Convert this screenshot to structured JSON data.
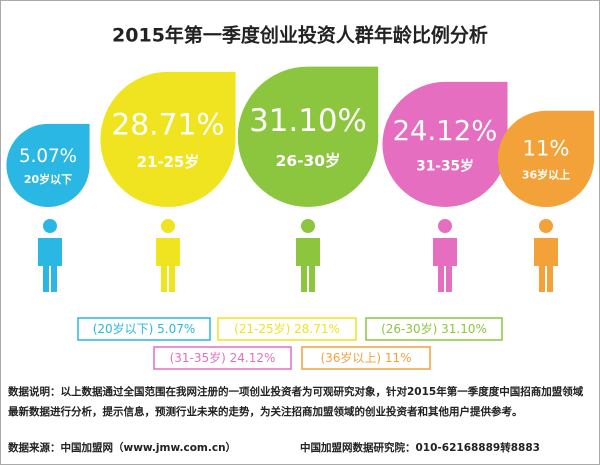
{
  "chart_data": {
    "type": "droplet",
    "title": "2015年第一季度创业投资人群年龄比例分析",
    "categories": [
      "20岁以下",
      "21-25岁",
      "26-30岁",
      "31-35岁",
      "36岁以上"
    ],
    "values": [
      5.07,
      28.71,
      31.1,
      24.12,
      11
    ],
    "value_labels": [
      "5.07%",
      "28.71%",
      "31.10%",
      "24.12%",
      "11%"
    ],
    "colors": [
      "#2bb7e3",
      "#f0e31f",
      "#8cc63e",
      "#e56ec0",
      "#f3a23a"
    ],
    "legend_labels": [
      "(20岁以下) 5.07%",
      "(21-25岁) 28.71%",
      "(26-30岁) 31.10%",
      "(31-35岁) 24.12%",
      "(36岁以上) 11%"
    ],
    "note": "数据说明：以上数据通过全国范围在我网注册的一项创业投资者为可观研究对象，针对2015年第一季度度中国招商加盟领域最新数据进行分析，提示信息，预测行业未来的走势，为关注招商加盟领域的创业投资者和其他用户提供参考。",
    "source": "数据来源：中国加盟网（www.jmw.com.cn）",
    "contact": "中国加盟网数据研究院：010-62168889转8883"
  }
}
